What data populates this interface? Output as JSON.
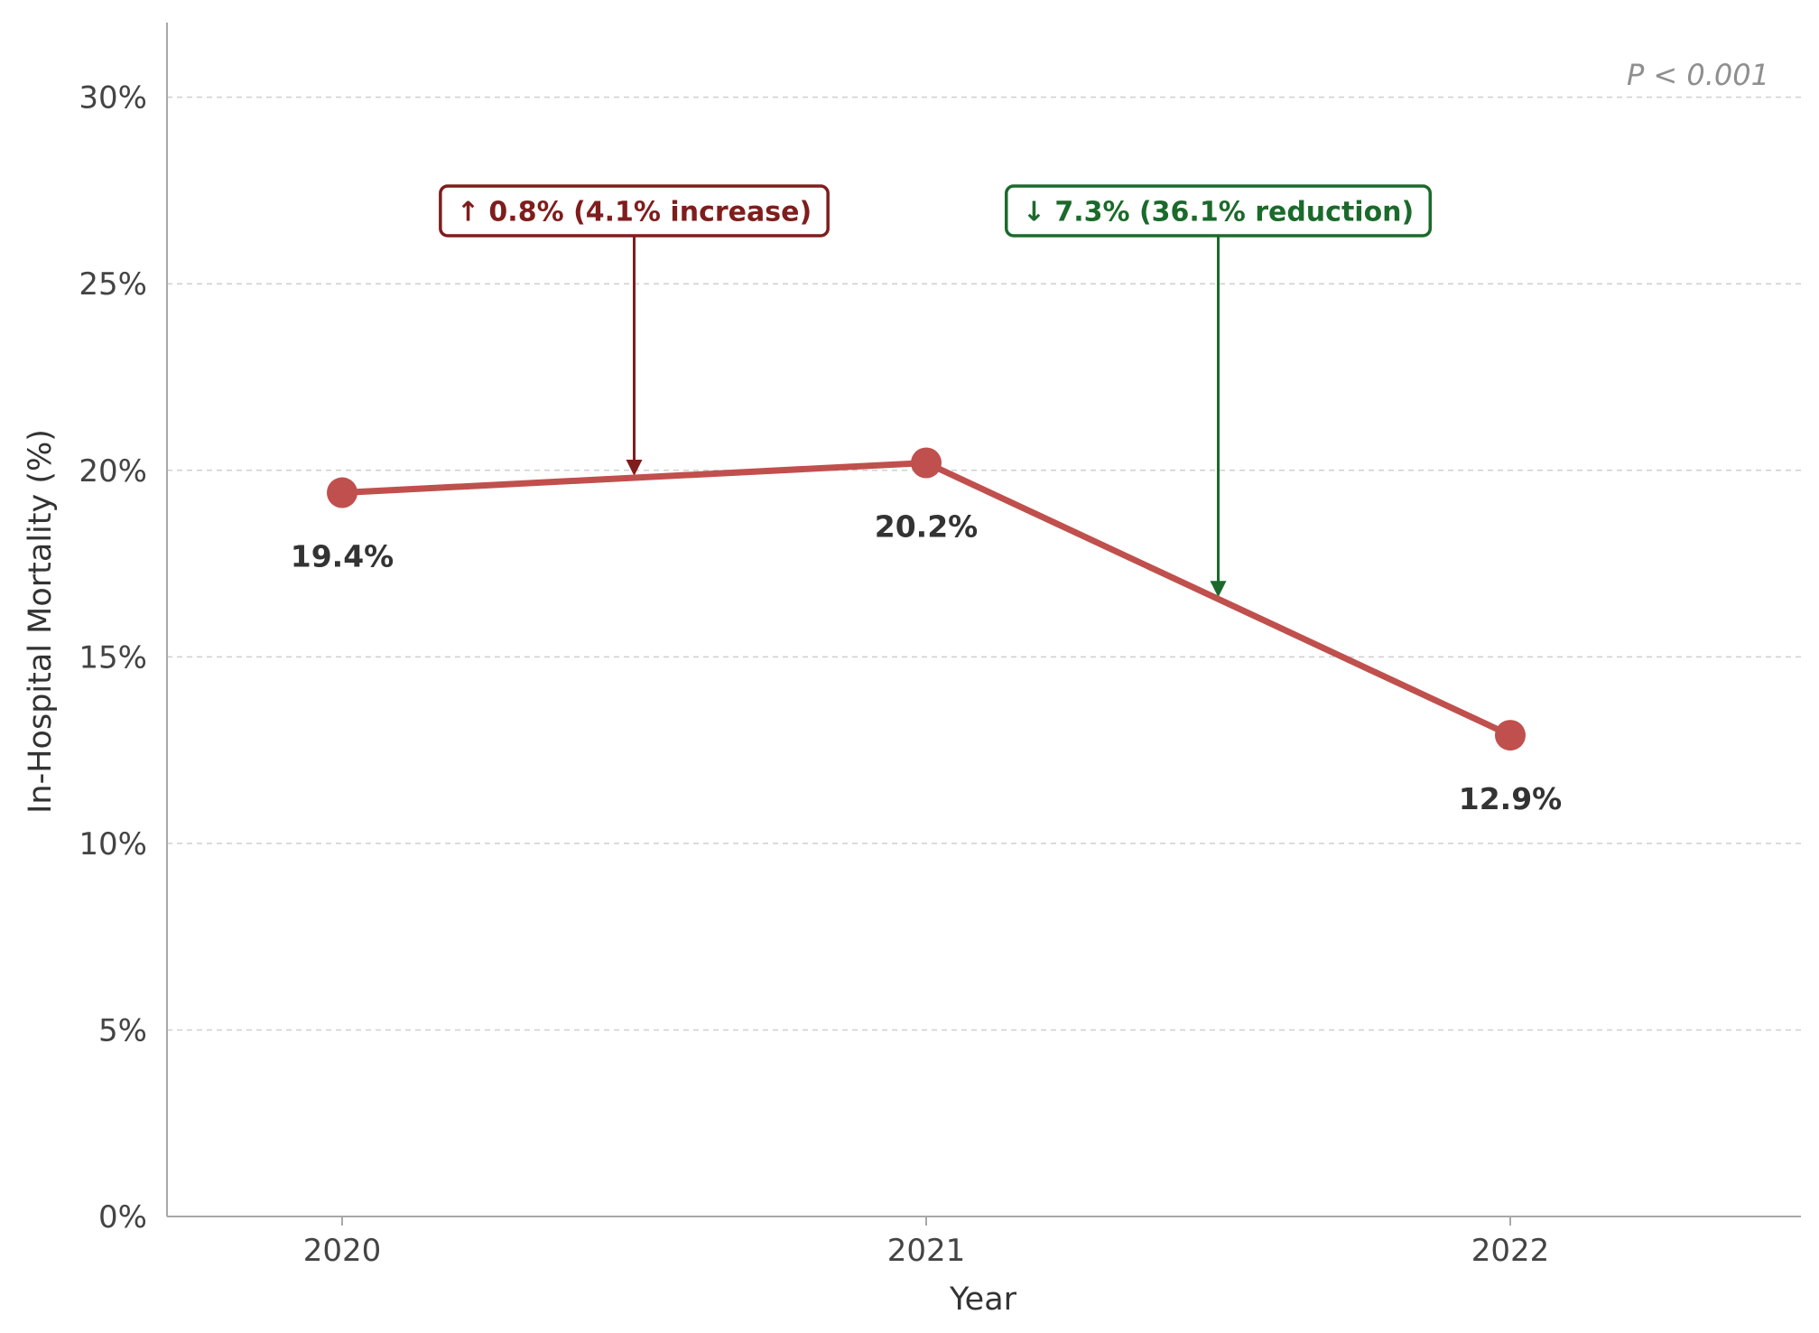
{
  "chart_data": {
    "type": "line",
    "x": [
      "2020",
      "2021",
      "2022"
    ],
    "series": [
      {
        "values": [
          19.4,
          20.2,
          12.9
        ],
        "color": "#c0504d"
      }
    ],
    "data_labels": [
      "19.4%",
      "20.2%",
      "12.9%"
    ],
    "xlabel": "Year",
    "ylabel": "In-Hospital Mortality (%)",
    "ylim": [
      0,
      32
    ],
    "yticks": [
      0,
      5,
      10,
      15,
      20,
      25,
      30
    ],
    "ytick_labels": [
      "0%",
      "5%",
      "10%",
      "15%",
      "20%",
      "25%",
      "30%"
    ],
    "grid": "horizontal dashed",
    "annotations": [
      {
        "text": "↑ 0.8%  (4.1% increase)",
        "color": "#7f1d1d",
        "points_to_value": 19.8,
        "between": [
          "2020",
          "2021"
        ]
      },
      {
        "text": "↓ 7.3%  (36.1% reduction)",
        "color": "#1b6a2b",
        "points_to_value": 16.55,
        "between": [
          "2021",
          "2022"
        ]
      }
    ],
    "pvalue_text": "P < 0.001"
  }
}
